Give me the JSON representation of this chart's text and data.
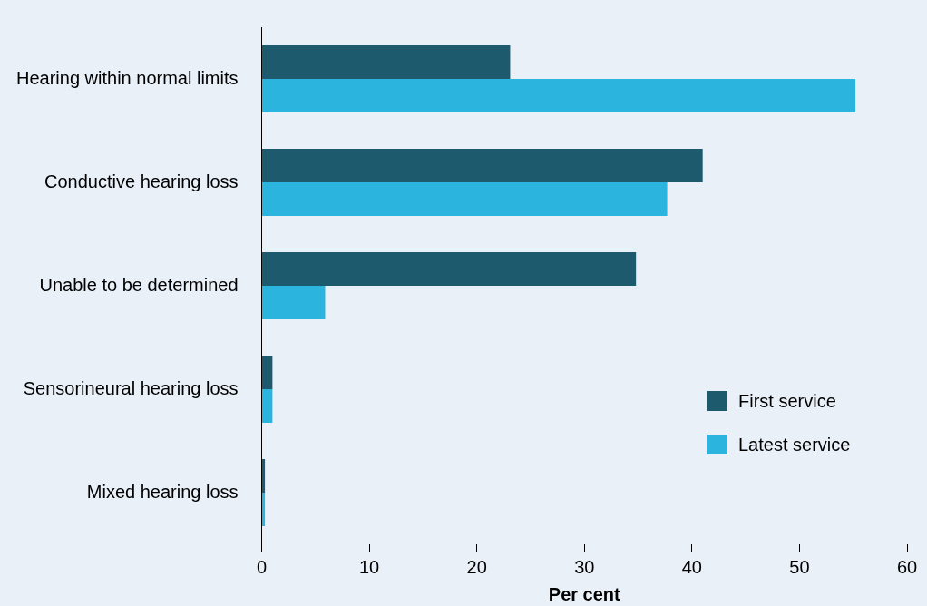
{
  "chart_data": {
    "type": "bar",
    "orientation": "horizontal",
    "xlabel": "Per cent",
    "categories": [
      "Hearing within normal limits",
      "Conductive hearing loss",
      "Unable to be determined",
      "Sensorineural hearing loss",
      "Mixed hearing loss"
    ],
    "series": [
      {
        "name": "First service",
        "color": "#1d5a6e",
        "values": [
          23.1,
          41.0,
          34.8,
          1.0,
          0.3
        ]
      },
      {
        "name": "Latest service",
        "color": "#2bb5de",
        "values": [
          55.2,
          37.7,
          5.9,
          1.0,
          0.3
        ]
      }
    ],
    "xlim": [
      0,
      60
    ],
    "xticks": [
      0,
      10,
      20,
      30,
      40,
      50,
      60
    ],
    "grid": false,
    "legend": "bottom right"
  }
}
